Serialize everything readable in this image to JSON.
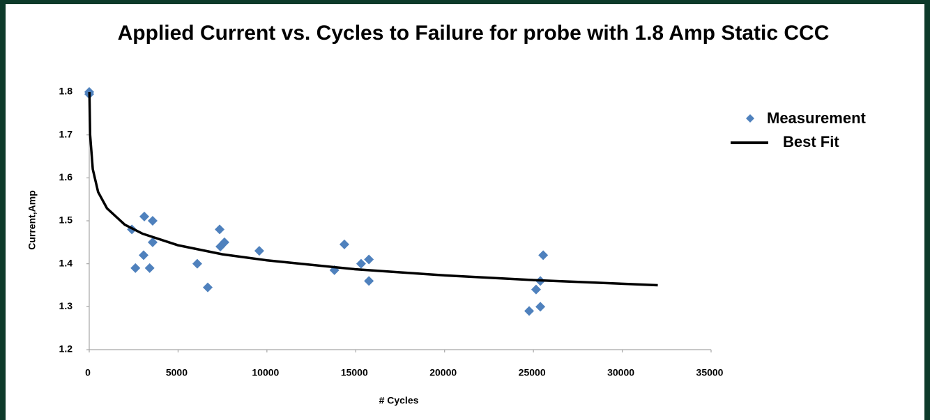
{
  "chart_data": {
    "type": "scatter",
    "title": "Applied Current vs. Cycles to Failure for probe with 1.8 Amp Static CCC",
    "x_label": "# Cycles",
    "y_label": "Current,Amp",
    "xlim": [
      0,
      35000
    ],
    "xticks": [
      0,
      5000,
      10000,
      15000,
      20000,
      25000,
      30000,
      35000
    ],
    "ylim": [
      1.2,
      1.8
    ],
    "yticks": [
      1.2,
      1.3,
      1.4,
      1.5,
      1.6,
      1.7,
      1.8
    ],
    "grid": false,
    "legend": "right",
    "series": [
      {
        "name": "Measurement",
        "color": "#4f81bd",
        "type": "scatter",
        "x": [
          0,
          0,
          2400,
          2600,
          3100,
          3060,
          3570,
          3570,
          3400,
          6080,
          6670,
          7340,
          7380,
          7610,
          9570,
          13800,
          14360,
          15300,
          15740,
          15740,
          24760,
          25150,
          25390,
          25390,
          25550
        ],
        "values": [
          1.8,
          1.795,
          1.48,
          1.39,
          1.51,
          1.42,
          1.5,
          1.45,
          1.39,
          1.4,
          1.345,
          1.48,
          1.44,
          1.45,
          1.43,
          1.385,
          1.445,
          1.4,
          1.41,
          1.36,
          1.29,
          1.34,
          1.36,
          1.3,
          1.42
        ]
      },
      {
        "name": "Best Fit",
        "color": "#000000",
        "type": "line",
        "x": [
          10,
          50,
          200,
          500,
          1000,
          2000,
          3000,
          5000,
          7500,
          10000,
          15000,
          20000,
          25000,
          32000
        ],
        "values": [
          1.8,
          1.7,
          1.62,
          1.567,
          1.529,
          1.491,
          1.47,
          1.443,
          1.422,
          1.408,
          1.387,
          1.373,
          1.362,
          1.35
        ]
      }
    ]
  }
}
